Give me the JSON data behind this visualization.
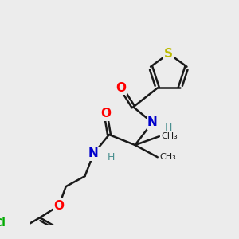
{
  "bg_color": "#ececec",
  "bond_color": "#1a1a1a",
  "bond_width": 1.8,
  "atom_colors": {
    "O": "#ff0000",
    "N": "#0000cc",
    "S": "#bbbb00",
    "Cl": "#00aa00",
    "C": "#1a1a1a",
    "H": "#4a9090"
  },
  "font_size": 10,
  "small_font_size": 9
}
